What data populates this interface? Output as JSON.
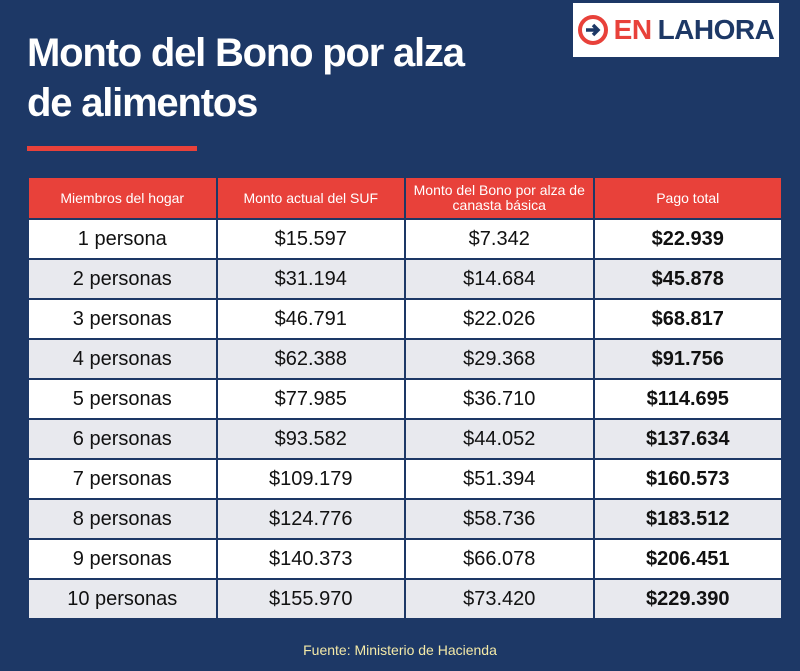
{
  "header": {
    "title": "Monto del Bono por alza de alimentos",
    "logo": {
      "part1": "EN",
      "part2": "LAHORA"
    }
  },
  "table": {
    "columns": [
      "Miembros del hogar",
      "Monto actual del SUF",
      "Monto del Bono por alza de canasta básica",
      "Pago total"
    ],
    "rows": [
      [
        "1 persona",
        "$15.597",
        "$7.342",
        "$22.939"
      ],
      [
        "2 personas",
        "$31.194",
        "$14.684",
        "$45.878"
      ],
      [
        "3 personas",
        "$46.791",
        "$22.026",
        "$68.817"
      ],
      [
        "4 personas",
        "$62.388",
        "$29.368",
        "$91.756"
      ],
      [
        "5 personas",
        "$77.985",
        "$36.710",
        "$114.695"
      ],
      [
        "6 personas",
        "$93.582",
        "$44.052",
        "$137.634"
      ],
      [
        "7 personas",
        "$109.179",
        "$51.394",
        "$160.573"
      ],
      [
        "8 personas",
        "$124.776",
        "$58.736",
        "$183.512"
      ],
      [
        "9 personas",
        "$140.373",
        "$66.078",
        "$206.451"
      ],
      [
        "10 personas",
        "$155.970",
        "$73.420",
        "$229.390"
      ]
    ]
  },
  "footer": {
    "source": "Fuente: Ministerio de Hacienda"
  }
}
